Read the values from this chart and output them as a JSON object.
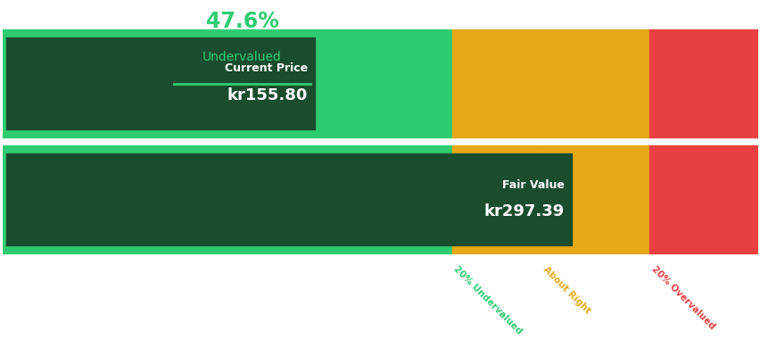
{
  "title_percentage": "47.6%",
  "title_label": "Undervalued",
  "current_price_label": "Current Price",
  "current_price_value": "kr155.80",
  "fair_value_label": "Fair Value",
  "fair_value_value": "kr297.39",
  "bottom_labels": [
    "20% Undervalued",
    "About Right",
    "20% Overvalued"
  ],
  "bottom_label_colors": [
    "#2ecc71",
    "#e6a817",
    "#e84040"
  ],
  "title_color": "#2ecc71",
  "line_color": "#2ecc71",
  "light_green": "#2ecc71",
  "dark_green_box": "#1a4d2e",
  "orange": "#e6a817",
  "red": "#e84040",
  "current_price_val": 155.8,
  "fair_value_val": 297.39,
  "total_max": 416.87,
  "seg1_val": 247.83,
  "seg2_val": 297.39,
  "seg3_val": 356.87,
  "figsize": [
    8.53,
    3.8
  ],
  "dpi": 100
}
